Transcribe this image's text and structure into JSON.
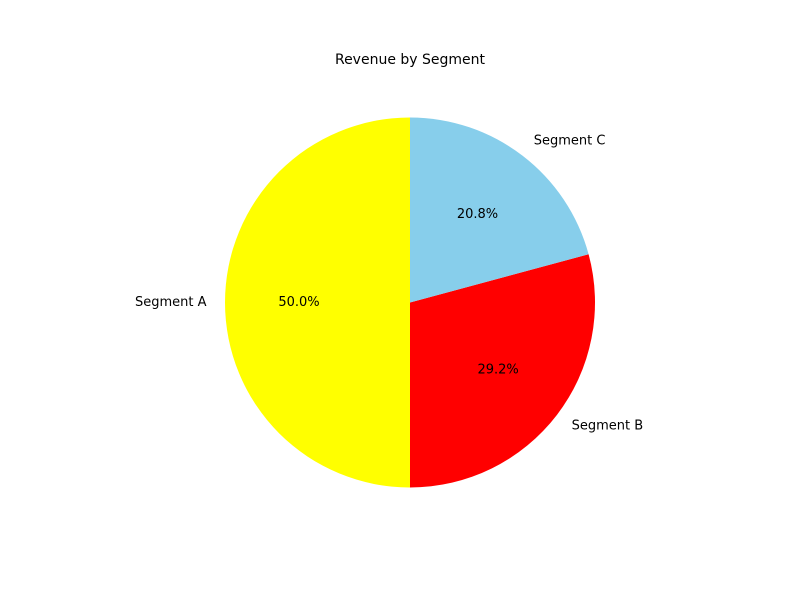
{
  "chart_data": {
    "type": "pie",
    "title": "Revenue by Segment",
    "labels": [
      "Segment A",
      "Segment B",
      "Segment C"
    ],
    "values": [
      50.0,
      29.2,
      20.8
    ],
    "percent_labels": [
      "50.0%",
      "29.2%",
      "20.8%"
    ],
    "colors": [
      "#ffff00",
      "#ff0000",
      "#87ceeb"
    ],
    "start_angle_deg": 90,
    "direction": "counterclockwise"
  }
}
